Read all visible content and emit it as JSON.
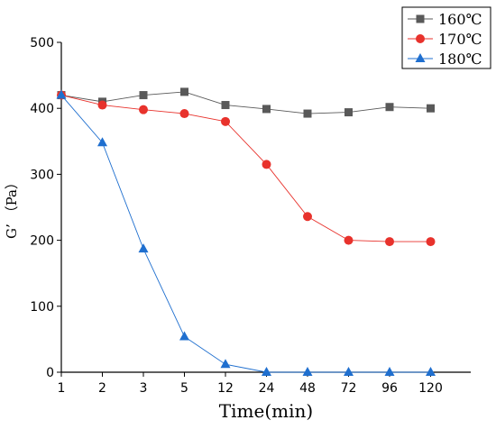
{
  "chart_data": {
    "type": "line",
    "categories": [
      "1",
      "2",
      "3",
      "5",
      "12",
      "24",
      "48",
      "72",
      "96",
      "120"
    ],
    "xlabel": "Time(min)",
    "ylabel": "G’ （Pa）",
    "ylim": [
      0,
      500
    ],
    "yticks": [
      0,
      100,
      200,
      300,
      400,
      500
    ],
    "grid": false,
    "legend_position": "top-right",
    "series": [
      {
        "name": "160℃",
        "color": "#595959",
        "marker": "square",
        "values": [
          420,
          410,
          420,
          425,
          405,
          399,
          392,
          394,
          402,
          400
        ]
      },
      {
        "name": "170℃",
        "color": "#e8322c",
        "marker": "circle",
        "values": [
          420,
          405,
          398,
          392,
          380,
          315,
          236,
          200,
          198,
          198
        ]
      },
      {
        "name": "180℃",
        "color": "#1f6fcf",
        "marker": "triangle",
        "values": [
          420,
          348,
          187,
          54,
          12,
          0,
          0,
          0,
          0,
          0
        ]
      }
    ]
  }
}
